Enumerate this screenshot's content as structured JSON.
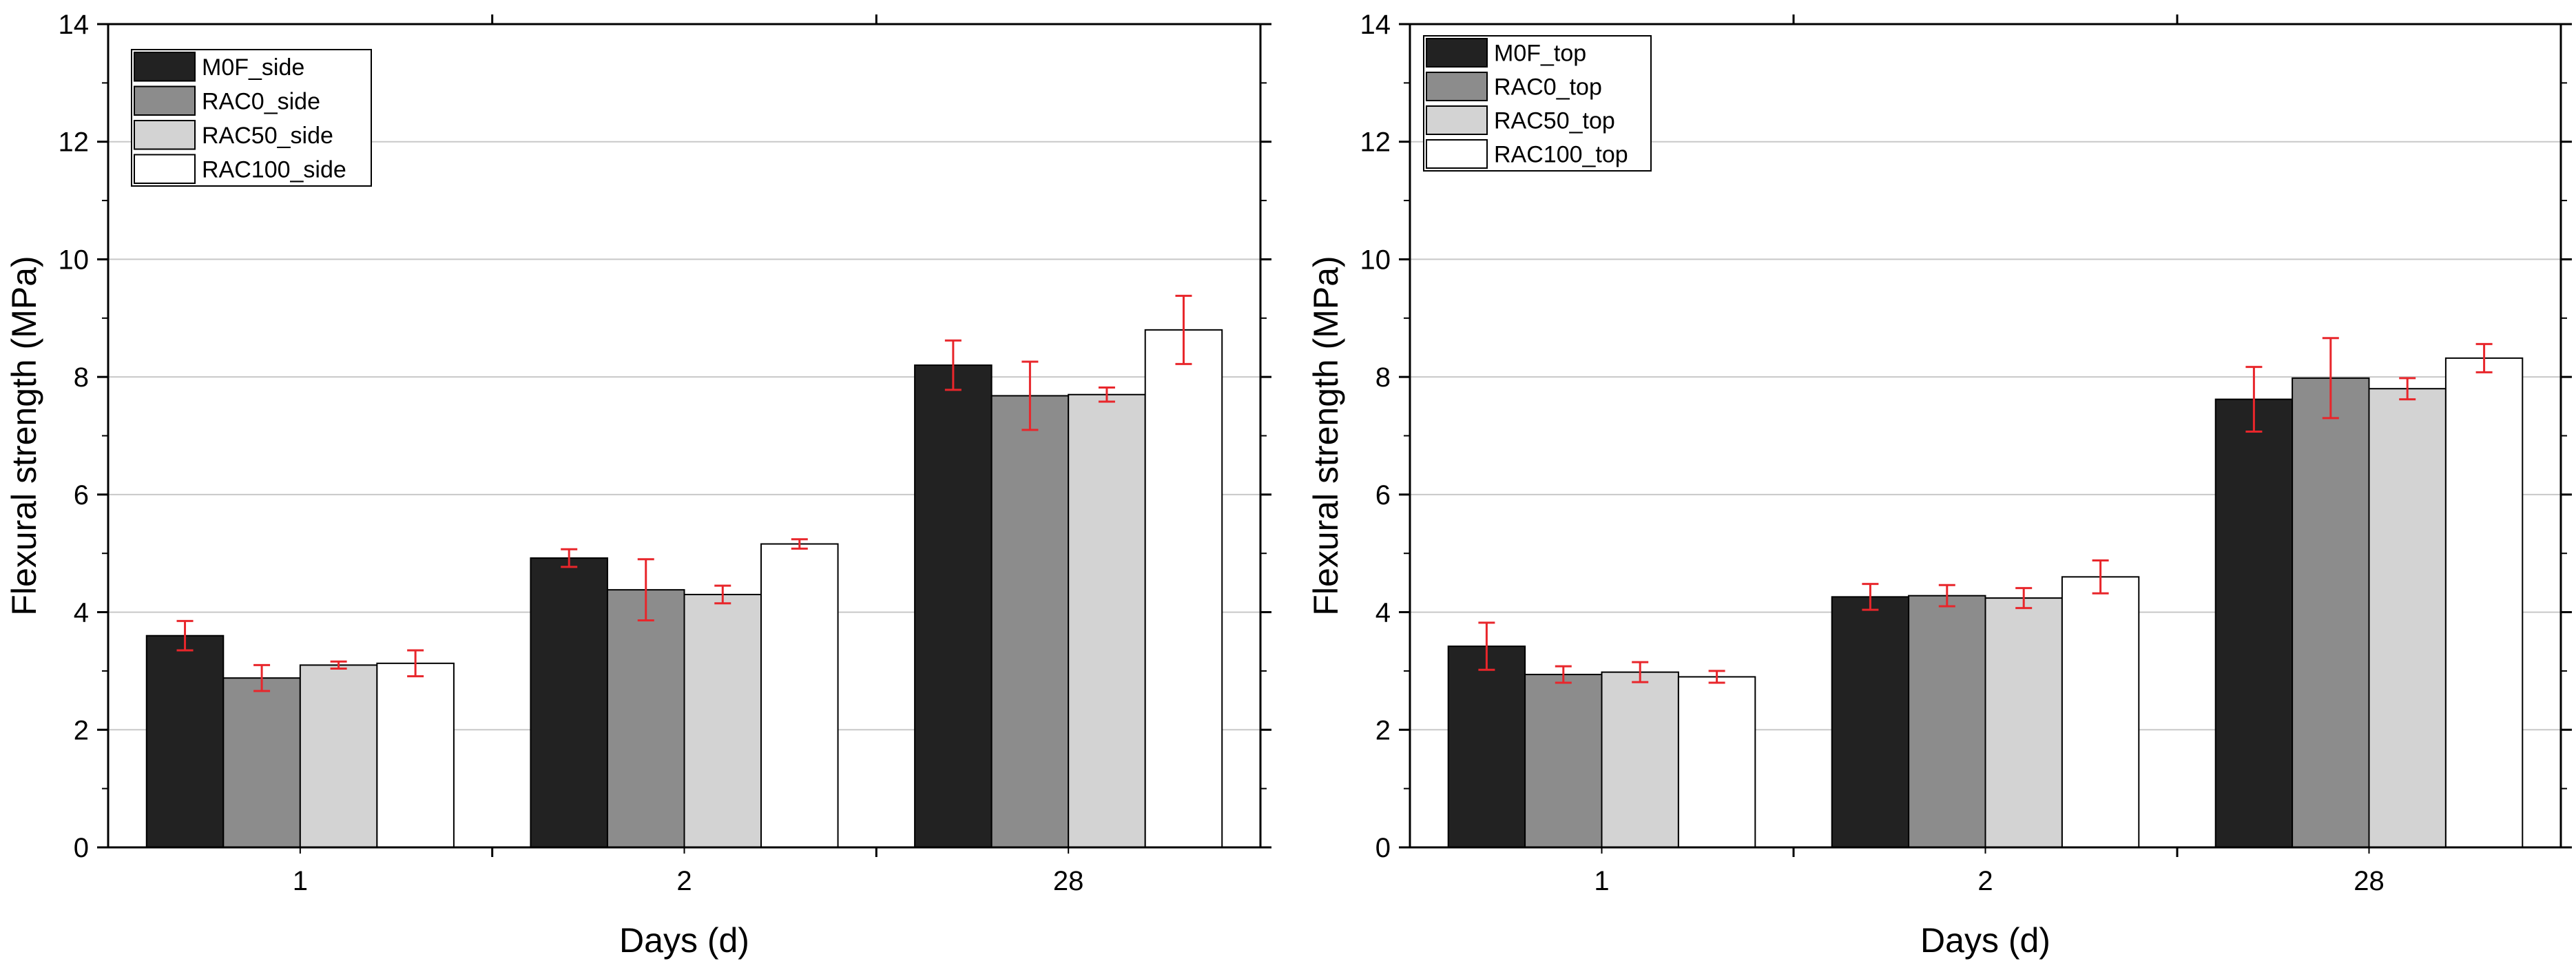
{
  "chart_data": [
    {
      "type": "bar",
      "title": "",
      "xlabel": "Days (d)",
      "ylabel": "Flexural strength (MPa)",
      "ylim": [
        0,
        14
      ],
      "yticks": [
        0,
        2,
        4,
        6,
        8,
        10,
        12,
        14
      ],
      "grid": true,
      "legend_position": "top-left",
      "categories": [
        "1",
        "2",
        "28"
      ],
      "series": [
        {
          "name": "M0F_side",
          "fill": "#222222",
          "values": [
            3.6,
            4.92,
            8.2
          ],
          "errors": [
            0.25,
            0.15,
            0.42
          ]
        },
        {
          "name": "RAC0_side",
          "fill": "#8c8c8c",
          "values": [
            2.88,
            4.38,
            7.68
          ],
          "errors": [
            0.22,
            0.52,
            0.58
          ]
        },
        {
          "name": "RAC50_side",
          "fill": "#d3d3d3",
          "values": [
            3.1,
            4.3,
            7.7
          ],
          "errors": [
            0.06,
            0.15,
            0.12
          ]
        },
        {
          "name": "RAC100_side",
          "fill": "#ffffff",
          "values": [
            3.13,
            5.16,
            8.8
          ],
          "errors": [
            0.22,
            0.08,
            0.58
          ]
        }
      ]
    },
    {
      "type": "bar",
      "title": "",
      "xlabel": "Days (d)",
      "ylabel": "Flexural strength (MPa)",
      "ylim": [
        0,
        14
      ],
      "yticks": [
        0,
        2,
        4,
        6,
        8,
        10,
        12,
        14
      ],
      "grid": true,
      "legend_position": "top-left",
      "categories": [
        "1",
        "2",
        "28"
      ],
      "series": [
        {
          "name": "M0F_top",
          "fill": "#222222",
          "values": [
            3.42,
            4.26,
            7.62
          ],
          "errors": [
            0.4,
            0.22,
            0.55
          ]
        },
        {
          "name": "RAC0_top",
          "fill": "#8c8c8c",
          "values": [
            2.94,
            4.28,
            7.98
          ],
          "errors": [
            0.14,
            0.18,
            0.68
          ]
        },
        {
          "name": "RAC50_top",
          "fill": "#d3d3d3",
          "values": [
            2.98,
            4.24,
            7.8
          ],
          "errors": [
            0.17,
            0.17,
            0.18
          ]
        },
        {
          "name": "RAC100_top",
          "fill": "#ffffff",
          "values": [
            2.9,
            4.6,
            8.32
          ],
          "errors": [
            0.1,
            0.28,
            0.24
          ]
        }
      ]
    }
  ],
  "colors": {
    "error_bar": "#e8262b",
    "grid": "#c8c8c8",
    "axis": "#000000",
    "bar_stroke": "#000000"
  }
}
